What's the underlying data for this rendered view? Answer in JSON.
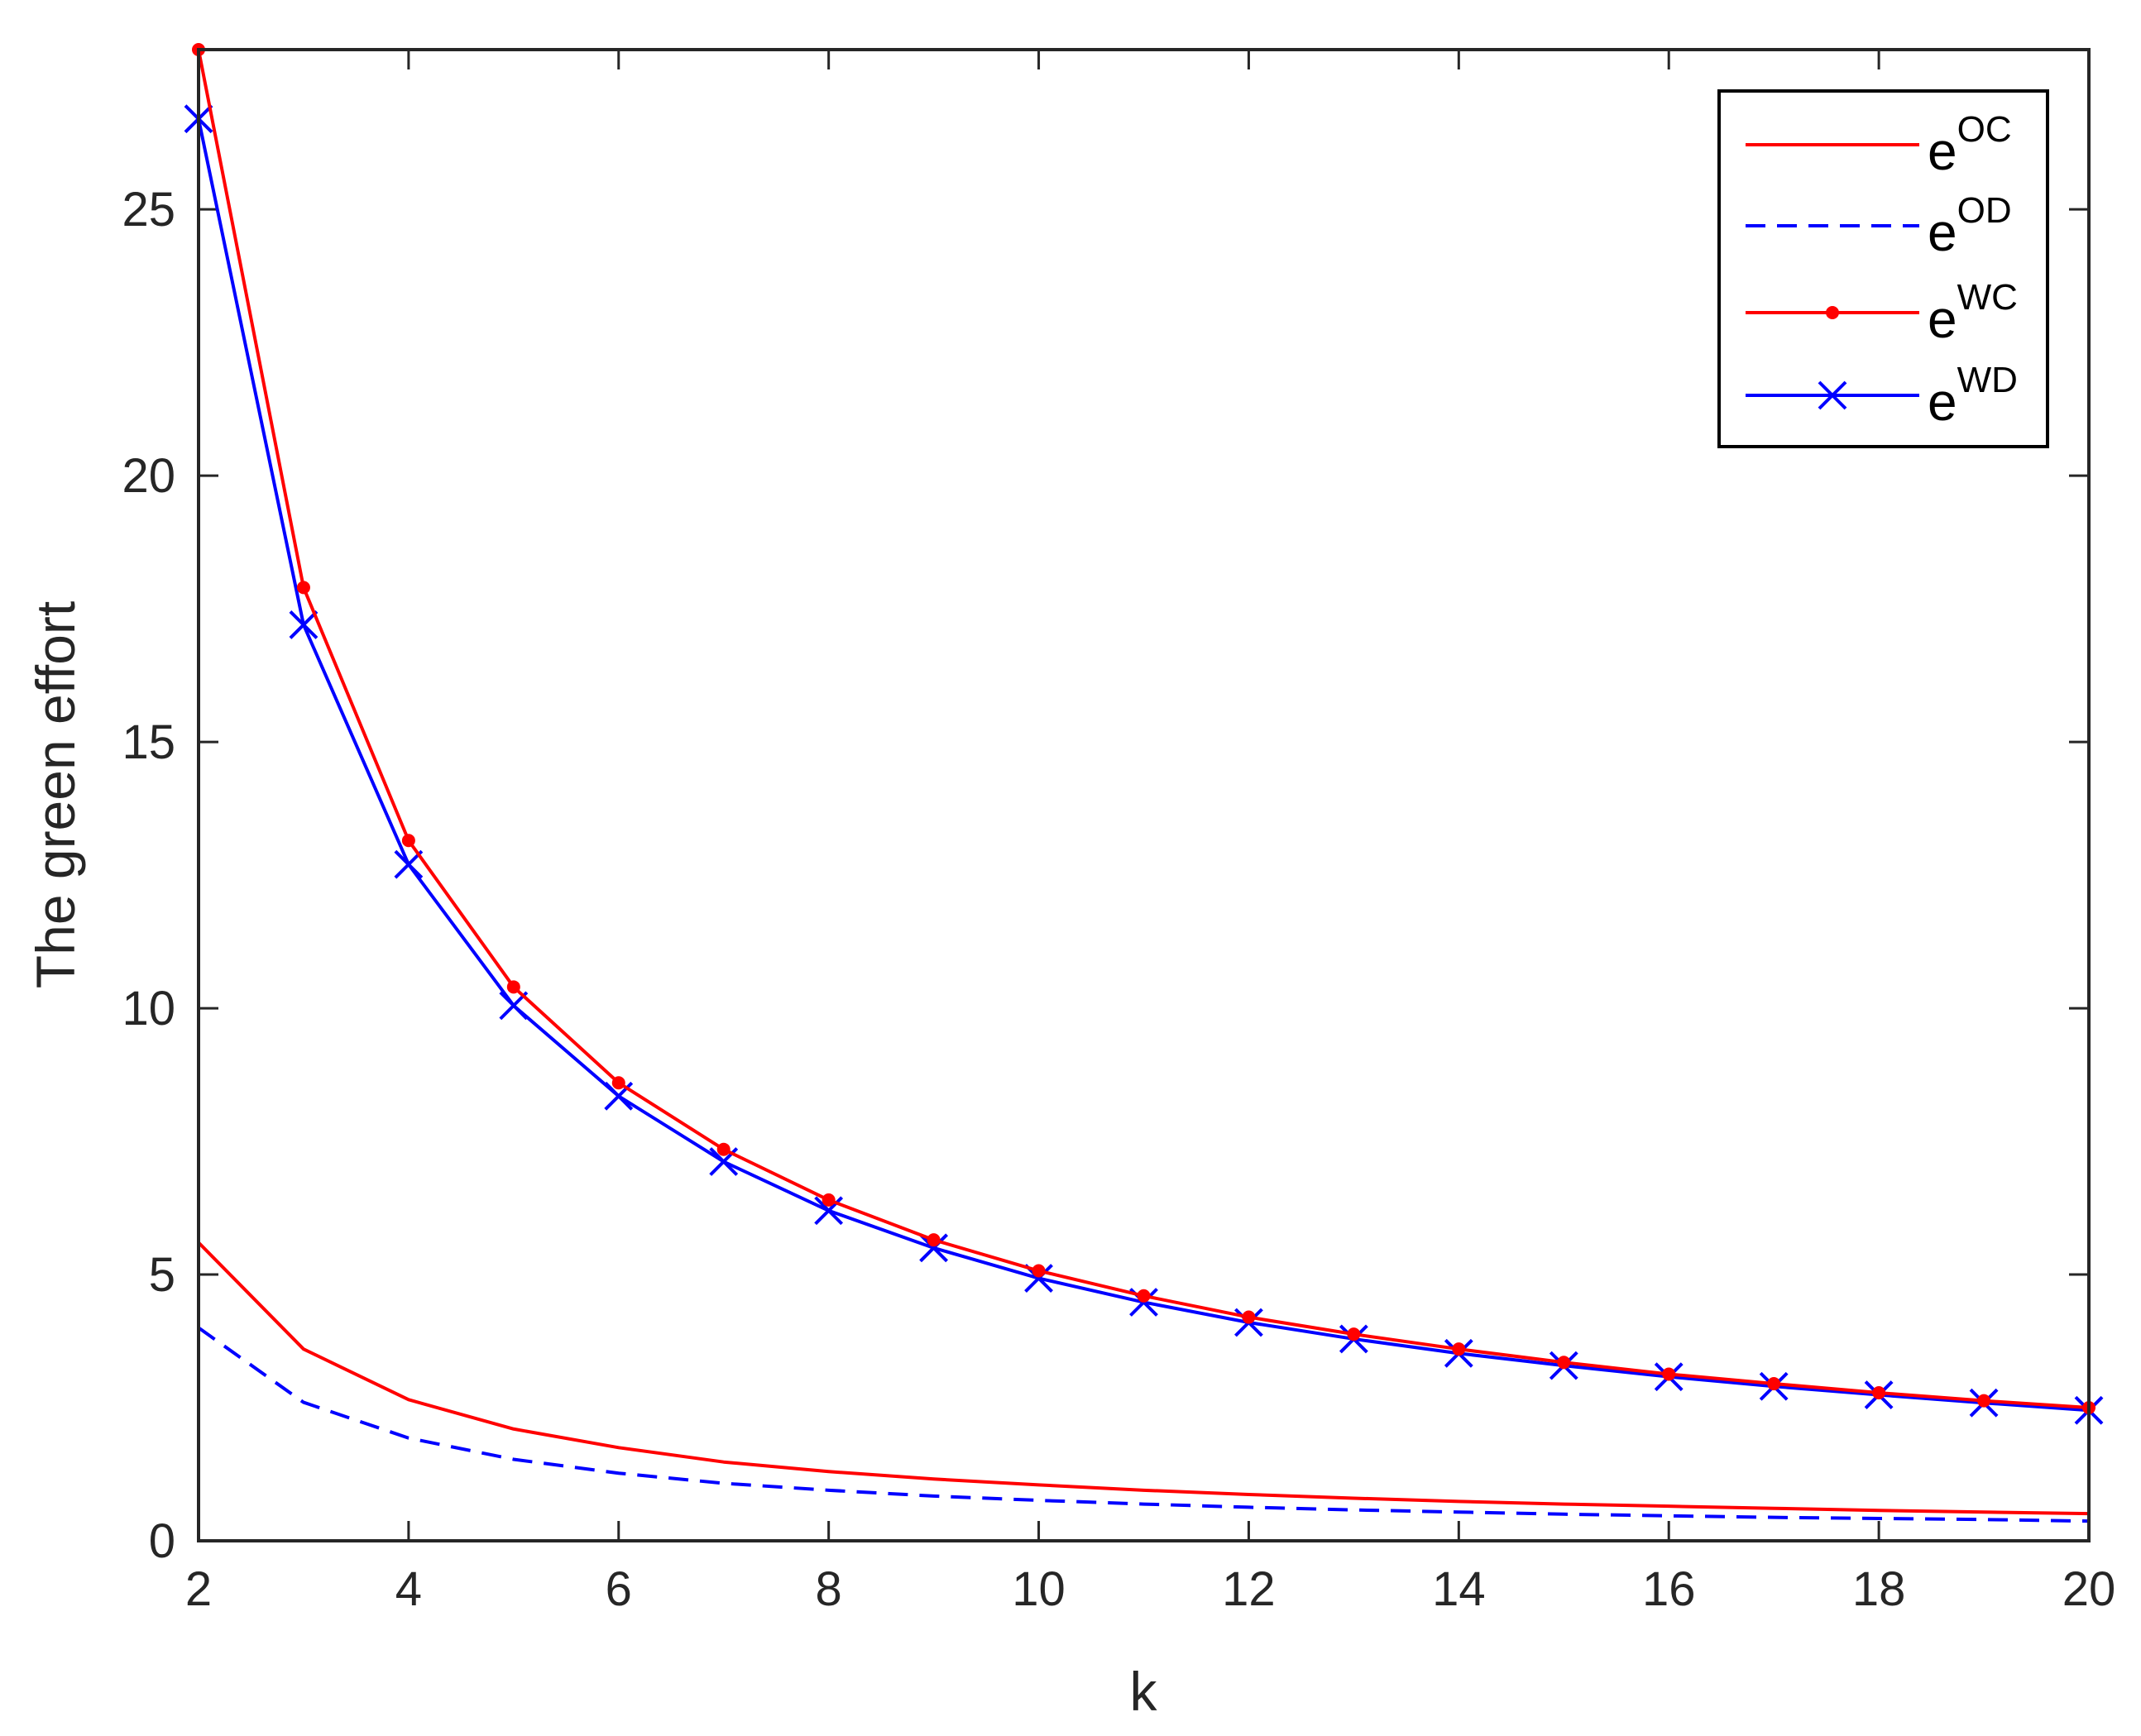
{
  "chart_data": {
    "type": "line",
    "title": "",
    "xlabel": "k",
    "ylabel": "The green effort",
    "xlim": [
      2,
      20
    ],
    "ylim": [
      0,
      28
    ],
    "xticks": [
      2,
      4,
      6,
      8,
      10,
      12,
      14,
      16,
      18,
      20
    ],
    "xtick_labels": [
      "2",
      "4",
      "6",
      "8",
      "10",
      "12",
      "14",
      "16",
      "18",
      "20"
    ],
    "yticks": [
      0,
      5,
      10,
      15,
      20,
      25
    ],
    "ytick_labels": [
      "0",
      "5",
      "10",
      "15",
      "20",
      "25"
    ],
    "grid": false,
    "legend_position": "top-right",
    "x": [
      2,
      3,
      4,
      5,
      6,
      7,
      8,
      9,
      10,
      11,
      12,
      13,
      14,
      15,
      16,
      17,
      18,
      19,
      20
    ],
    "series": [
      {
        "name": "e",
        "sup": "OC",
        "color": "#ff0000",
        "line": "solid",
        "marker": "none",
        "values": [
          5.6,
          3.6,
          2.65,
          2.1,
          1.75,
          1.48,
          1.3,
          1.16,
          1.05,
          0.95,
          0.87,
          0.8,
          0.74,
          0.69,
          0.65,
          0.61,
          0.57,
          0.54,
          0.51
        ]
      },
      {
        "name": "e",
        "sup": "OD",
        "color": "#0000ff",
        "line": "dashed",
        "marker": "none",
        "values": [
          4.0,
          2.6,
          1.93,
          1.53,
          1.27,
          1.08,
          0.95,
          0.84,
          0.76,
          0.69,
          0.63,
          0.58,
          0.54,
          0.5,
          0.47,
          0.44,
          0.42,
          0.4,
          0.37
        ]
      },
      {
        "name": "e",
        "sup": "WC",
        "color": "#ff0000",
        "line": "solid",
        "marker": "dot",
        "values": [
          28.0,
          17.9,
          13.15,
          10.4,
          8.6,
          7.35,
          6.4,
          5.65,
          5.07,
          4.6,
          4.2,
          3.88,
          3.6,
          3.35,
          3.13,
          2.95,
          2.78,
          2.63,
          2.5
        ]
      },
      {
        "name": "e",
        "sup": "WD",
        "color": "#0000ff",
        "line": "solid",
        "marker": "x",
        "values": [
          26.7,
          17.2,
          12.7,
          10.05,
          8.35,
          7.12,
          6.2,
          5.5,
          4.93,
          4.48,
          4.1,
          3.79,
          3.52,
          3.29,
          3.08,
          2.9,
          2.74,
          2.59,
          2.45
        ]
      }
    ]
  }
}
